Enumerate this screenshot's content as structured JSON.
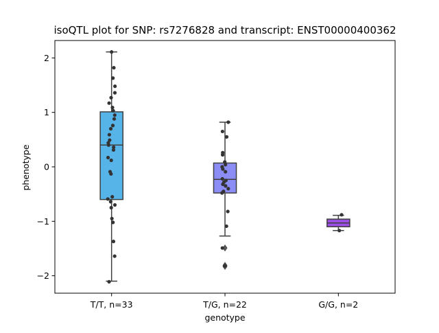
{
  "chart_data": {
    "type": "box",
    "title": "isoQTL plot for SNP: rs7276828 and transcript: ENST00000400362",
    "xlabel": "genotype",
    "ylabel": "phenotype",
    "ylim": [
      -2.32,
      2.32
    ],
    "yticks": [
      -2,
      -1,
      0,
      1,
      2
    ],
    "ytick_labels": [
      "−2",
      "−1",
      "0",
      "1",
      "2"
    ],
    "grid": false,
    "legend": "none",
    "categories": [
      "T/T, n=33",
      "T/G, n=22",
      "G/G, n=2"
    ],
    "groups": [
      {
        "label": "T/T, n=33",
        "color": "#56b4e9",
        "box": {
          "whisker_low": -2.1,
          "q1": -0.6,
          "median": 0.4,
          "q3": 1.01,
          "whisker_high": 2.11
        },
        "outliers": [],
        "points": [
          {
            "dx": 0.0,
            "y": 2.11
          },
          {
            "dx": 0.2,
            "y": 1.82
          },
          {
            "dx": 0.12,
            "y": 1.63
          },
          {
            "dx": 0.3,
            "y": 1.48
          },
          {
            "dx": 0.29,
            "y": 1.36
          },
          {
            "dx": -0.04,
            "y": 1.27
          },
          {
            "dx": -0.22,
            "y": 1.17
          },
          {
            "dx": 0.08,
            "y": 1.09
          },
          {
            "dx": 0.15,
            "y": 1.03
          },
          {
            "dx": 0.28,
            "y": 0.95
          },
          {
            "dx": 0.23,
            "y": 0.88
          },
          {
            "dx": 0.11,
            "y": 0.76
          },
          {
            "dx": -0.07,
            "y": 0.7
          },
          {
            "dx": -0.2,
            "y": 0.59
          },
          {
            "dx": -0.17,
            "y": 0.49
          },
          {
            "dx": -0.29,
            "y": 0.44
          },
          {
            "dx": -0.26,
            "y": 0.4
          },
          {
            "dx": 0.18,
            "y": 0.36
          },
          {
            "dx": 0.17,
            "y": 0.31
          },
          {
            "dx": -0.31,
            "y": 0.17
          },
          {
            "dx": -0.03,
            "y": 0.12
          },
          {
            "dx": -0.13,
            "y": -0.09
          },
          {
            "dx": -0.05,
            "y": -0.13
          },
          {
            "dx": 0.06,
            "y": -0.55
          },
          {
            "dx": -0.33,
            "y": -0.59
          },
          {
            "dx": -0.08,
            "y": -0.64
          },
          {
            "dx": 0.29,
            "y": -0.7
          },
          {
            "dx": -0.03,
            "y": -0.75
          },
          {
            "dx": 0.03,
            "y": -0.95
          },
          {
            "dx": 0.12,
            "y": -1.02
          },
          {
            "dx": 0.17,
            "y": -1.37
          },
          {
            "dx": 0.27,
            "y": -1.64
          },
          {
            "dx": -0.22,
            "y": -2.11
          }
        ]
      },
      {
        "label": "T/G, n=22",
        "color": "#8c8cf5",
        "box": {
          "whisker_low": -1.27,
          "q1": -0.48,
          "median": -0.23,
          "q3": 0.07,
          "whisker_high": 0.82
        },
        "outliers": [
          -1.49,
          -1.81,
          -1.83
        ],
        "points": [
          {
            "dx": 0.29,
            "y": 0.82
          },
          {
            "dx": -0.22,
            "y": 0.65
          },
          {
            "dx": 0.15,
            "y": 0.55
          },
          {
            "dx": -0.2,
            "y": 0.26
          },
          {
            "dx": -0.21,
            "y": 0.22
          },
          {
            "dx": -0.02,
            "y": 0.09
          },
          {
            "dx": 0.04,
            "y": 0.04
          },
          {
            "dx": -0.25,
            "y": 0.0
          },
          {
            "dx": -0.19,
            "y": -0.04
          },
          {
            "dx": 0.04,
            "y": -0.09
          },
          {
            "dx": -0.23,
            "y": -0.22
          },
          {
            "dx": 0.08,
            "y": -0.25
          },
          {
            "dx": -0.09,
            "y": -0.28
          },
          {
            "dx": -0.19,
            "y": -0.32
          },
          {
            "dx": 0.05,
            "y": -0.35
          },
          {
            "dx": 0.29,
            "y": -0.4
          },
          {
            "dx": -0.13,
            "y": -0.45
          },
          {
            "dx": -0.26,
            "y": -0.48
          },
          {
            "dx": 0.25,
            "y": -0.82
          },
          {
            "dx": 0.13,
            "y": -1.09
          },
          {
            "dx": -0.23,
            "y": -1.49
          },
          {
            "dx": -0.01,
            "y": -1.82
          }
        ]
      },
      {
        "label": "G/G, n=2",
        "color": "#9b4fe3",
        "box": {
          "whisker_low": -1.17,
          "q1": -1.1,
          "median": -1.03,
          "q3": -0.96,
          "whisker_high": -0.89
        },
        "outliers": [],
        "points": [
          {
            "dx": 0.28,
            "y": -0.88
          },
          {
            "dx": 0.08,
            "y": -1.17
          }
        ]
      }
    ]
  }
}
